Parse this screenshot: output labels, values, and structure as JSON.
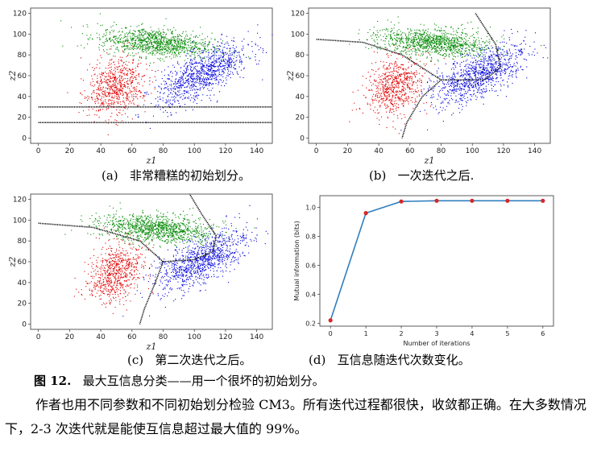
{
  "panels": [
    {
      "id": "a",
      "caption_letter": "(a)",
      "caption_text": "非常糟糕的初始划分。",
      "xlabel": "z1",
      "ylabel": "z2",
      "xticks": [
        "0",
        "20",
        "40",
        "60",
        "80",
        "100",
        "120",
        "140"
      ],
      "yticks": [
        "0",
        "20",
        "40",
        "60",
        "80",
        "100",
        "120"
      ]
    },
    {
      "id": "b",
      "caption_letter": "(b)",
      "caption_text": "一次迭代之后.",
      "xlabel": "z1",
      "ylabel": "z2",
      "xticks": [
        "0",
        "20",
        "40",
        "60",
        "80",
        "100",
        "120",
        "140"
      ],
      "yticks": [
        "0",
        "20",
        "40",
        "60",
        "80",
        "100",
        "120"
      ]
    },
    {
      "id": "c",
      "caption_letter": "(c)",
      "caption_text": "第二次迭代之后。",
      "xlabel": "z1",
      "ylabel": "z2",
      "xticks": [
        "0",
        "20",
        "40",
        "60",
        "80",
        "100",
        "120",
        "140"
      ],
      "yticks": [
        "0",
        "20",
        "40",
        "60",
        "80",
        "100",
        "120"
      ]
    },
    {
      "id": "d",
      "caption_letter": "(d)",
      "caption_text": "互信息随迭代次数变化。"
    }
  ],
  "colors": {
    "cluster1": "#e00000",
    "cluster2": "#008800",
    "cluster3": "#0000dd",
    "boundary": "#111111",
    "line": "#2f7fbf",
    "marker": "#d62728"
  },
  "chart_data": {
    "type": "line",
    "x": [
      0,
      1,
      2,
      3,
      4,
      5,
      6
    ],
    "values": [
      0.22,
      0.96,
      1.04,
      1.045,
      1.045,
      1.045,
      1.045
    ],
    "xlabel": "Number of iterations",
    "ylabel": "Mutual information (bits)",
    "xticks": [
      "0",
      "1",
      "2",
      "3",
      "4",
      "5",
      "6"
    ],
    "yticks": [
      "0.2",
      "0.4",
      "0.6",
      "0.8",
      "1.0"
    ],
    "xlim": [
      0,
      6
    ],
    "ylim": [
      0.2,
      1.05
    ]
  },
  "figure_caption": {
    "label": "图 12.",
    "text": "最大互信息分类——用一个很坏的初始划分。"
  },
  "paragraph": "作者也用不同参数和不同初始划分检验 CM3。所有迭代过程都很快，收敛都正确。在大多数情况下，2-3 次迭代就是能使互信息超过最大值的 99%。"
}
